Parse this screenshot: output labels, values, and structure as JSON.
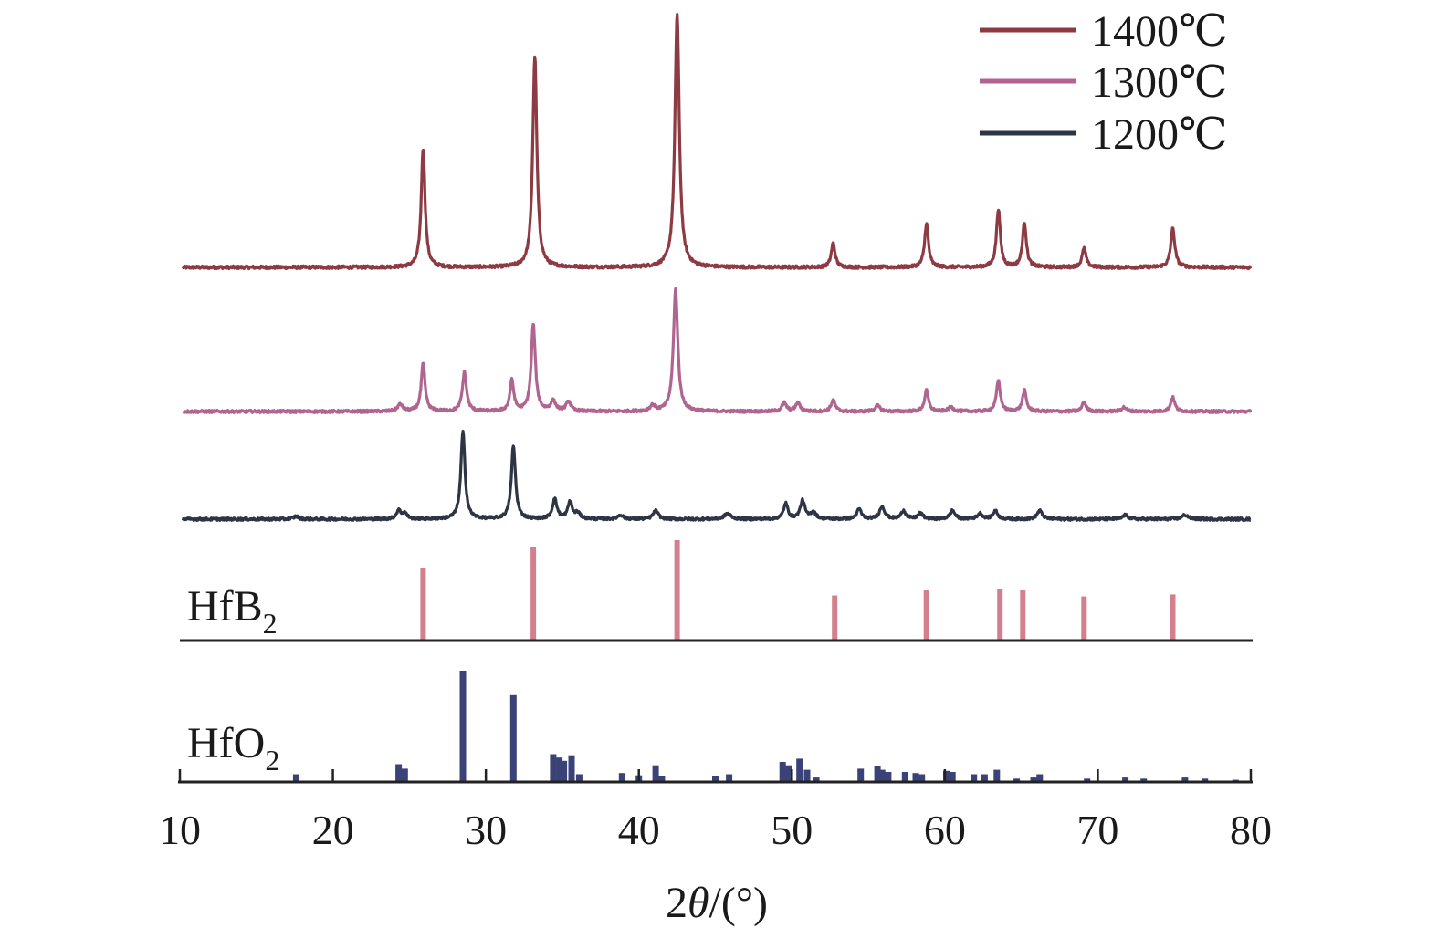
{
  "chart_data": {
    "type": "line",
    "xlabel_prefix": "2",
    "xlabel_symbol": "θ",
    "xlabel_suffix": "/(°)",
    "xlim": [
      10,
      80
    ],
    "xticks": [
      "10",
      "20",
      "30",
      "40",
      "50",
      "60",
      "70",
      "80"
    ],
    "colors": {
      "s1400": "#8e3a43",
      "s1300": "#b06590",
      "s1200": "#2d3445",
      "hfb2": "#d47f8d",
      "hfo2": "#3b4278"
    },
    "series": [
      {
        "name": "1400℃",
        "key": "s1400",
        "baseline": 0,
        "peaks": [
          [
            25.9,
            0.74,
            0.15
          ],
          [
            33.2,
            1.31,
            0.16
          ],
          [
            42.5,
            1.57,
            0.17
          ],
          [
            52.7,
            0.15,
            0.15
          ],
          [
            58.8,
            0.27,
            0.15
          ],
          [
            63.5,
            0.36,
            0.15
          ],
          [
            65.2,
            0.28,
            0.15
          ],
          [
            69.1,
            0.12,
            0.15
          ],
          [
            74.9,
            0.24,
            0.16
          ]
        ]
      },
      {
        "name": "1300℃",
        "key": "s1300",
        "baseline": 0,
        "peaks": [
          [
            24.4,
            0.05,
            0.2
          ],
          [
            25.9,
            0.34,
            0.15
          ],
          [
            28.6,
            0.28,
            0.16
          ],
          [
            31.7,
            0.22,
            0.15
          ],
          [
            33.1,
            0.62,
            0.16
          ],
          [
            34.4,
            0.07,
            0.2
          ],
          [
            35.4,
            0.07,
            0.18
          ],
          [
            40.9,
            0.04,
            0.2
          ],
          [
            42.4,
            0.87,
            0.17
          ],
          [
            49.5,
            0.06,
            0.18
          ],
          [
            50.4,
            0.06,
            0.18
          ],
          [
            52.7,
            0.08,
            0.16
          ],
          [
            55.6,
            0.04,
            0.2
          ],
          [
            58.8,
            0.15,
            0.15
          ],
          [
            60.4,
            0.03,
            0.2
          ],
          [
            63.5,
            0.22,
            0.15
          ],
          [
            65.2,
            0.15,
            0.15
          ],
          [
            69.1,
            0.07,
            0.15
          ],
          [
            71.7,
            0.03,
            0.2
          ],
          [
            74.9,
            0.1,
            0.16
          ]
        ]
      },
      {
        "name": "1200℃",
        "key": "s1200",
        "baseline": 0,
        "peaks": [
          [
            17.6,
            0.02,
            0.2
          ],
          [
            24.3,
            0.06,
            0.18
          ],
          [
            24.7,
            0.04,
            0.18
          ],
          [
            28.5,
            0.62,
            0.16
          ],
          [
            31.8,
            0.52,
            0.16
          ],
          [
            34.5,
            0.14,
            0.18
          ],
          [
            35.5,
            0.12,
            0.17
          ],
          [
            36.0,
            0.04,
            0.2
          ],
          [
            38.8,
            0.03,
            0.2
          ],
          [
            41.1,
            0.06,
            0.2
          ],
          [
            45.8,
            0.04,
            0.25
          ],
          [
            49.6,
            0.11,
            0.17
          ],
          [
            50.7,
            0.13,
            0.18
          ],
          [
            51.4,
            0.05,
            0.2
          ],
          [
            54.4,
            0.07,
            0.18
          ],
          [
            55.9,
            0.09,
            0.2
          ],
          [
            57.3,
            0.06,
            0.18
          ],
          [
            58.4,
            0.04,
            0.2
          ],
          [
            60.5,
            0.06,
            0.2
          ],
          [
            62.3,
            0.04,
            0.2
          ],
          [
            63.3,
            0.06,
            0.18
          ],
          [
            66.2,
            0.06,
            0.2
          ],
          [
            71.8,
            0.03,
            0.2
          ],
          [
            75.7,
            0.03,
            0.25
          ]
        ]
      }
    ],
    "reference_patterns": [
      {
        "label_main": "HfB",
        "label_sub": "2",
        "key": "hfb2",
        "lines": [
          [
            25.9,
            0.72
          ],
          [
            33.1,
            0.93
          ],
          [
            42.5,
            1.0
          ],
          [
            52.8,
            0.45
          ],
          [
            58.8,
            0.5
          ],
          [
            63.6,
            0.51
          ],
          [
            65.1,
            0.5
          ],
          [
            69.1,
            0.44
          ],
          [
            74.9,
            0.46
          ]
        ]
      },
      {
        "label_main": "HfO",
        "label_sub": "2",
        "key": "hfo2",
        "lines": [
          [
            17.6,
            0.07
          ],
          [
            24.3,
            0.16
          ],
          [
            24.7,
            0.12
          ],
          [
            28.5,
            1.0
          ],
          [
            31.8,
            0.78
          ],
          [
            34.4,
            0.25
          ],
          [
            34.8,
            0.22
          ],
          [
            35.1,
            0.19
          ],
          [
            35.6,
            0.24
          ],
          [
            36.1,
            0.07
          ],
          [
            38.9,
            0.08
          ],
          [
            40.0,
            0.06
          ],
          [
            41.1,
            0.15
          ],
          [
            41.5,
            0.05
          ],
          [
            45.0,
            0.05
          ],
          [
            45.9,
            0.07
          ],
          [
            49.4,
            0.18
          ],
          [
            49.8,
            0.15
          ],
          [
            50.5,
            0.21
          ],
          [
            51.0,
            0.11
          ],
          [
            51.6,
            0.04
          ],
          [
            54.5,
            0.12
          ],
          [
            55.6,
            0.14
          ],
          [
            55.9,
            0.11
          ],
          [
            56.3,
            0.09
          ],
          [
            57.4,
            0.09
          ],
          [
            58.1,
            0.08
          ],
          [
            58.5,
            0.07
          ],
          [
            60.1,
            0.1
          ],
          [
            60.5,
            0.09
          ],
          [
            61.9,
            0.07
          ],
          [
            62.6,
            0.07
          ],
          [
            63.4,
            0.11
          ],
          [
            64.7,
            0.03
          ],
          [
            65.8,
            0.04
          ],
          [
            66.2,
            0.07
          ],
          [
            69.3,
            0.03
          ],
          [
            71.8,
            0.04
          ],
          [
            73.0,
            0.03
          ],
          [
            75.7,
            0.04
          ],
          [
            77.0,
            0.03
          ],
          [
            79.0,
            0.02
          ]
        ]
      }
    ],
    "legend_position": "top-right",
    "grid": false
  }
}
